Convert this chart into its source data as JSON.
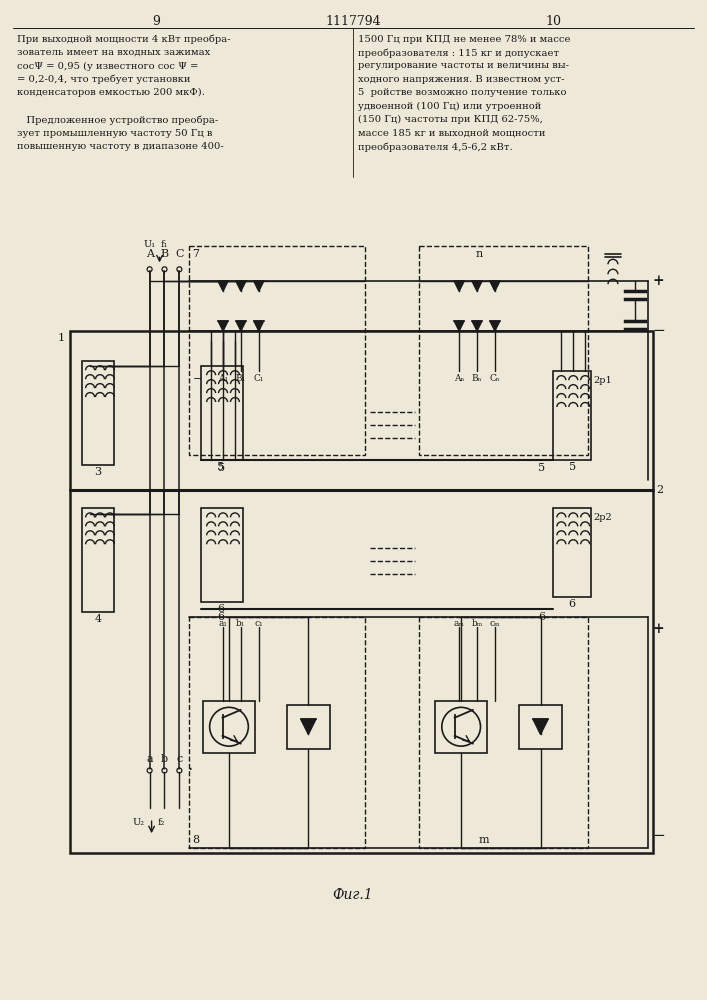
{
  "title_center": "1117794",
  "page_left": "9",
  "page_right": "10",
  "text_left": [
    "При выходной мощности 4 кВт преобра-",
    "зователь имеет на входных зажимах",
    "сосΨ = 0,95 (у известного сос Ψ =",
    "= 0,2-0,4, что требует установки",
    "конденсаторов емкостью 200 мкФ).",
    "",
    "   Предложенное устройство преобра-",
    "зует промышленную частоту 50 Гц в",
    "повышенную частоту в диапазоне 400-"
  ],
  "text_right": [
    "1500 Гц при КПД не менее 78% и массе",
    "преобразователя : 115 кг и допускает",
    "регулирование частоты и величины вы-",
    "ходного напряжения. В известном уст-",
    "5  ройстве возможно получение только",
    "удвоенной (100 Гц) или утроенной",
    "(150 Гц) частоты при КПД 62-75%,",
    "массе 185 кг и выходной мощности",
    "преобразователя 4,5-6,2 кВт."
  ],
  "fig_caption": "Фиг.1",
  "bg_color": "#ede8d8",
  "line_color": "#1a1a1a",
  "text_color": "#1a1a1a"
}
